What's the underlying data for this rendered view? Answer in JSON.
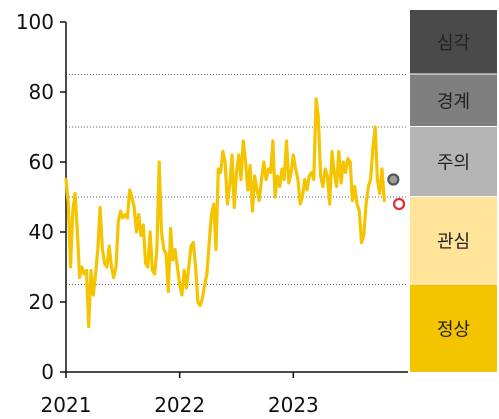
{
  "chart_data": {
    "type": "line",
    "title": "",
    "xlabel": "",
    "ylabel": "",
    "xlim": [
      2021.0,
      2024.0
    ],
    "ylim": [
      0,
      100
    ],
    "y_ticks": [
      "0",
      "20",
      "40",
      "60",
      "80",
      "100"
    ],
    "x_ticks": [
      {
        "value": 2021,
        "label": "2021"
      },
      {
        "value": 2022,
        "label": "2022"
      },
      {
        "value": 2023,
        "label": "2023"
      }
    ],
    "gridlines": "dotted, at band boundaries",
    "series": [
      {
        "color": "#F5C400",
        "points": [
          [
            2021.0,
            55
          ],
          [
            2021.02,
            48
          ],
          [
            2021.04,
            30
          ],
          [
            2021.06,
            46
          ],
          [
            2021.08,
            51
          ],
          [
            2021.1,
            40
          ],
          [
            2021.12,
            27
          ],
          [
            2021.14,
            30
          ],
          [
            2021.16,
            28
          ],
          [
            2021.18,
            29
          ],
          [
            2021.2,
            13
          ],
          [
            2021.22,
            29
          ],
          [
            2021.24,
            22
          ],
          [
            2021.26,
            28
          ],
          [
            2021.28,
            35
          ],
          [
            2021.3,
            47
          ],
          [
            2021.32,
            35
          ],
          [
            2021.34,
            31
          ],
          [
            2021.36,
            30
          ],
          [
            2021.38,
            36
          ],
          [
            2021.4,
            30
          ],
          [
            2021.42,
            27
          ],
          [
            2021.44,
            30
          ],
          [
            2021.46,
            43
          ],
          [
            2021.48,
            46
          ],
          [
            2021.5,
            44
          ],
          [
            2021.52,
            45
          ],
          [
            2021.54,
            44
          ],
          [
            2021.56,
            52
          ],
          [
            2021.58,
            50
          ],
          [
            2021.6,
            47
          ],
          [
            2021.62,
            40
          ],
          [
            2021.64,
            45
          ],
          [
            2021.66,
            39
          ],
          [
            2021.68,
            42
          ],
          [
            2021.7,
            31
          ],
          [
            2021.72,
            30
          ],
          [
            2021.74,
            40
          ],
          [
            2021.76,
            29
          ],
          [
            2021.78,
            28
          ],
          [
            2021.8,
            35
          ],
          [
            2021.82,
            60
          ],
          [
            2021.84,
            40
          ],
          [
            2021.86,
            35
          ],
          [
            2021.88,
            34
          ],
          [
            2021.9,
            23
          ],
          [
            2021.92,
            41
          ],
          [
            2021.94,
            32
          ],
          [
            2021.96,
            35
          ],
          [
            2021.98,
            30
          ],
          [
            2022.0,
            25
          ],
          [
            2022.02,
            22
          ],
          [
            2022.04,
            29
          ],
          [
            2022.06,
            24
          ],
          [
            2022.08,
            30
          ],
          [
            2022.1,
            36
          ],
          [
            2022.12,
            37
          ],
          [
            2022.14,
            30
          ],
          [
            2022.16,
            20
          ],
          [
            2022.18,
            19
          ],
          [
            2022.2,
            21
          ],
          [
            2022.22,
            25
          ],
          [
            2022.24,
            28
          ],
          [
            2022.26,
            37
          ],
          [
            2022.28,
            45
          ],
          [
            2022.3,
            48
          ],
          [
            2022.32,
            35
          ],
          [
            2022.34,
            58
          ],
          [
            2022.36,
            57
          ],
          [
            2022.38,
            63
          ],
          [
            2022.4,
            60
          ],
          [
            2022.42,
            48
          ],
          [
            2022.44,
            53
          ],
          [
            2022.46,
            62
          ],
          [
            2022.48,
            47
          ],
          [
            2022.5,
            57
          ],
          [
            2022.52,
            62
          ],
          [
            2022.54,
            55
          ],
          [
            2022.56,
            66
          ],
          [
            2022.58,
            60
          ],
          [
            2022.6,
            52
          ],
          [
            2022.62,
            59
          ],
          [
            2022.64,
            46
          ],
          [
            2022.66,
            56
          ],
          [
            2022.68,
            52
          ],
          [
            2022.7,
            49
          ],
          [
            2022.72,
            55
          ],
          [
            2022.74,
            60
          ],
          [
            2022.76,
            55
          ],
          [
            2022.78,
            58
          ],
          [
            2022.8,
            57
          ],
          [
            2022.82,
            66
          ],
          [
            2022.84,
            50
          ],
          [
            2022.86,
            56
          ],
          [
            2022.88,
            53
          ],
          [
            2022.9,
            58
          ],
          [
            2022.92,
            55
          ],
          [
            2022.94,
            66
          ],
          [
            2022.96,
            54
          ],
          [
            2022.98,
            57
          ],
          [
            2023.0,
            62
          ],
          [
            2023.02,
            58
          ],
          [
            2023.04,
            55
          ],
          [
            2023.06,
            48
          ],
          [
            2023.08,
            50
          ],
          [
            2023.1,
            55
          ],
          [
            2023.12,
            52
          ],
          [
            2023.14,
            56
          ],
          [
            2023.16,
            57
          ],
          [
            2023.18,
            55
          ],
          [
            2023.2,
            78
          ],
          [
            2023.22,
            73
          ],
          [
            2023.24,
            56
          ],
          [
            2023.26,
            53
          ],
          [
            2023.28,
            58
          ],
          [
            2023.3,
            56
          ],
          [
            2023.32,
            48
          ],
          [
            2023.34,
            63
          ],
          [
            2023.36,
            57
          ],
          [
            2023.38,
            53
          ],
          [
            2023.4,
            63
          ],
          [
            2023.42,
            54
          ],
          [
            2023.44,
            60
          ],
          [
            2023.46,
            57
          ],
          [
            2023.48,
            61
          ],
          [
            2023.5,
            60
          ],
          [
            2023.52,
            49
          ],
          [
            2023.54,
            53
          ],
          [
            2023.56,
            48
          ],
          [
            2023.58,
            46
          ],
          [
            2023.6,
            37
          ],
          [
            2023.62,
            39
          ],
          [
            2023.64,
            48
          ],
          [
            2023.66,
            53
          ],
          [
            2023.68,
            55
          ],
          [
            2023.7,
            64
          ],
          [
            2023.72,
            70
          ],
          [
            2023.74,
            55
          ],
          [
            2023.76,
            51
          ],
          [
            2023.78,
            58
          ],
          [
            2023.8,
            49
          ]
        ]
      }
    ],
    "markers": [
      {
        "x": 2023.88,
        "y": 55,
        "fill": "#9E9E9E",
        "stroke": "#555555"
      },
      {
        "x": 2023.93,
        "y": 48,
        "fill": "#FFFFFF",
        "stroke": "#E03030"
      }
    ],
    "bands": [
      {
        "label": "심각",
        "from": 85,
        "to": 100,
        "color": "#4A4A4A",
        "text_color": "#FFFFFF"
      },
      {
        "label": "경계",
        "from": 70,
        "to": 85,
        "color": "#7F7F7F",
        "text_color": "#FFFFFF"
      },
      {
        "label": "주의",
        "from": 50,
        "to": 70,
        "color": "#B5B5B5",
        "text_color": "#222222"
      },
      {
        "label": "관심",
        "from": 25,
        "to": 50,
        "color": "#FFE49A",
        "text_color": "#222222"
      },
      {
        "label": "정상",
        "from": 0,
        "to": 25,
        "color": "#F5C400",
        "text_color": "#222222"
      }
    ]
  }
}
